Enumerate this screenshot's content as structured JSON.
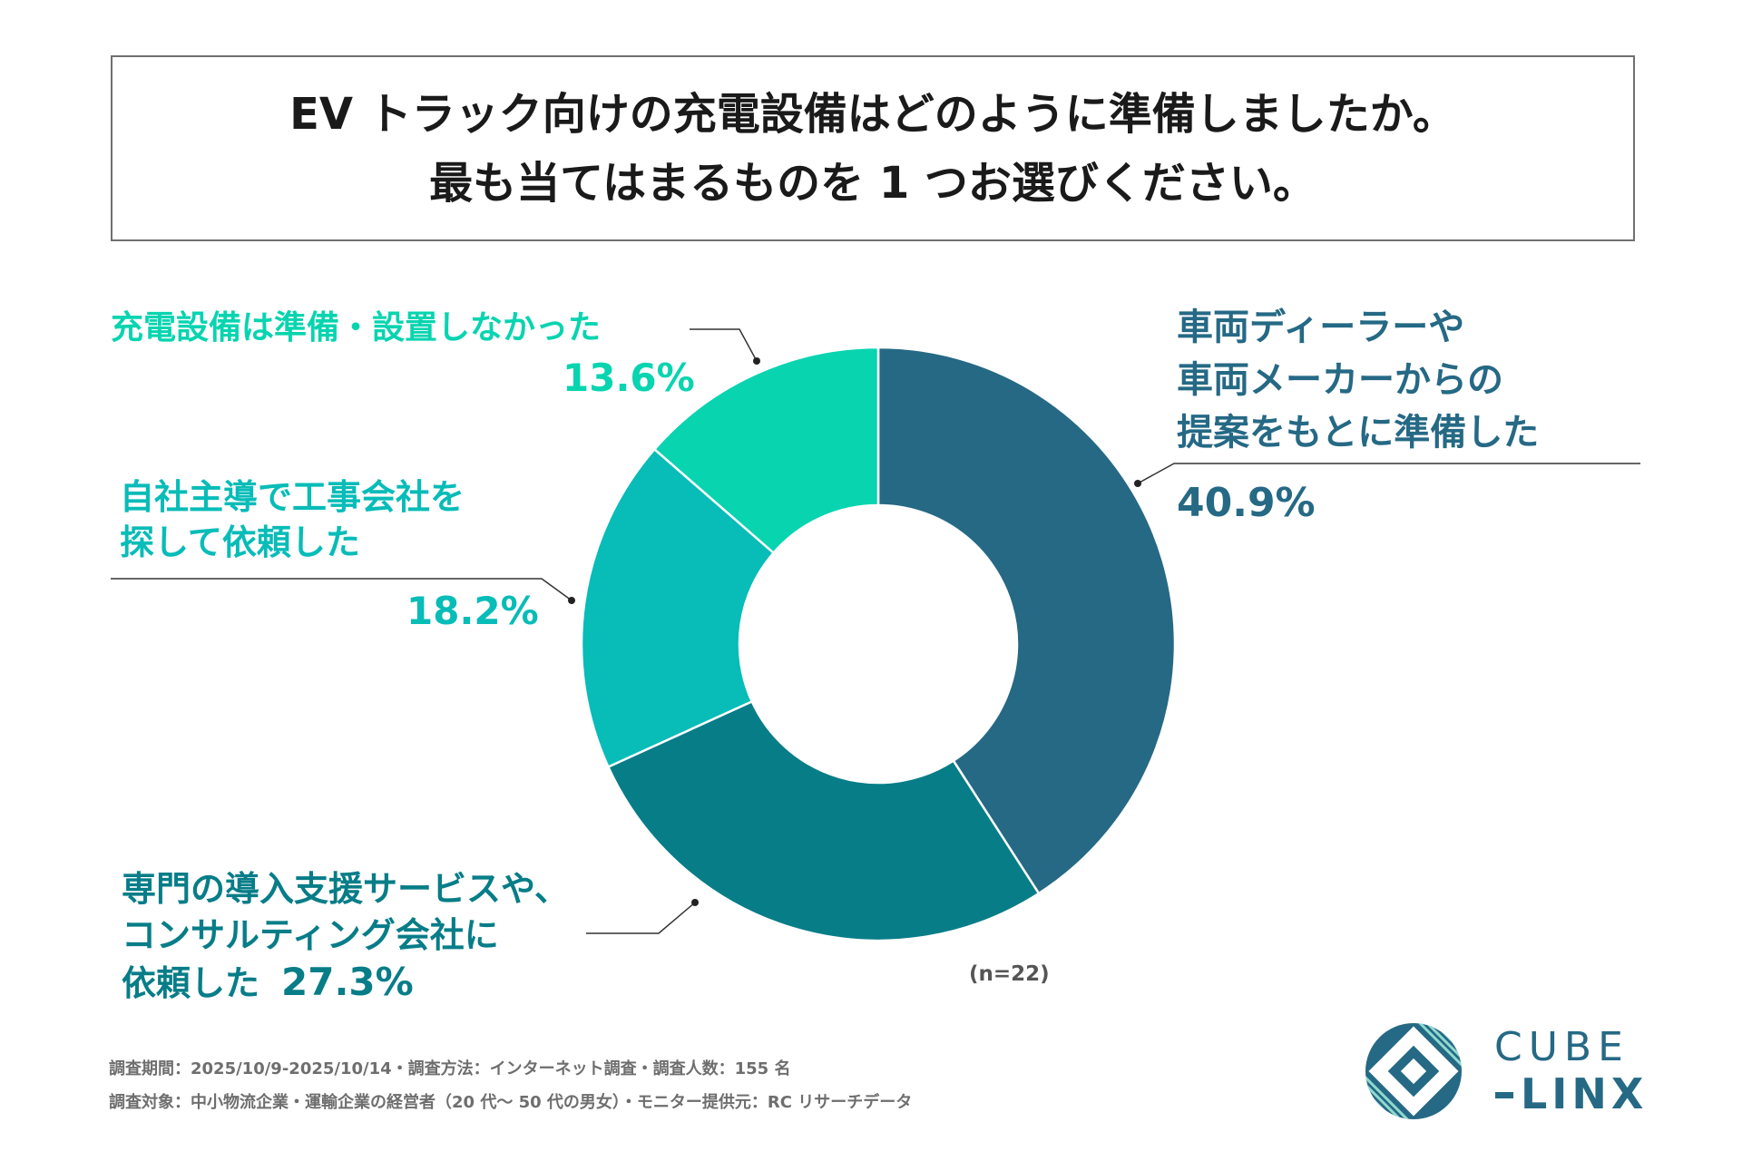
{
  "title": {
    "line1": "EV トラック向けの充電設備はどのように準備しましたか。",
    "line2": "最も当てはまるものを 1 つお選びください。"
  },
  "chart_data": {
    "type": "pie",
    "donut": true,
    "title": "EV トラック向けの充電設備はどのように準備しましたか。最も当てはまるものを 1 つお選びください。",
    "categories": [
      "車両ディーラーや車両メーカーからの提案をもとに準備した",
      "専門の導入支援サービスや、コンサルティング会社に依頼した",
      "自社主導で工事会社を探して依頼した",
      "充電設備は準備・設置しなかった"
    ],
    "values": [
      40.9,
      27.3,
      18.2,
      13.6
    ],
    "colors": [
      "#256985",
      "#077d88",
      "#08bcb8",
      "#08d4b0"
    ],
    "sample_size": "(n=22)"
  },
  "labels": {
    "s0": {
      "lines": [
        "車両ディーラーや",
        "車両メーカーからの",
        "提案をもとに準備した"
      ],
      "pct": "40.9%"
    },
    "s1": {
      "lines": [
        "専門の導入支援サービスや、",
        "コンサルティング会社に",
        "依頼した"
      ],
      "pct": "27.3%"
    },
    "s2": {
      "lines": [
        "自社主導で工事会社を",
        "探して依頼した"
      ],
      "pct": "18.2%"
    },
    "s3": {
      "lines": [
        "充電設備は準備・設置しなかった"
      ],
      "pct": "13.6%"
    }
  },
  "n_label": "(n=22)",
  "footnotes": {
    "line1": "調査期間：2025/10/9-2025/10/14・調査方法：インターネット調査・調査人数：155 名",
    "line2": "調査対象：中小物流企業・運輸企業の経営者（20 代～ 50 代の男女）・モニター提供元：RC リサーチデータ"
  },
  "logo": {
    "line1": "CUBE",
    "line2": "LINX",
    "color": "#256985"
  }
}
